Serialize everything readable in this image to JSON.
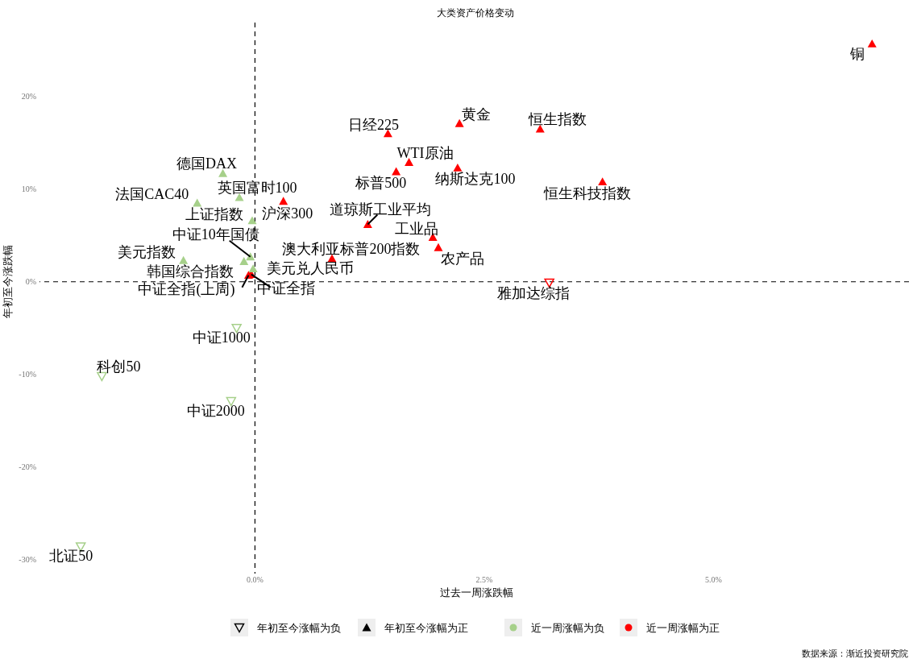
{
  "chart_data": {
    "type": "scatter",
    "title": "大类资产价格变动",
    "xlabel": "过去一周涨跌幅",
    "ylabel": "年初至今涨跌幅",
    "xlim": [
      -2.35,
      7.15
    ],
    "ylim": [
      -31,
      28
    ],
    "xticks": [
      {
        "value": 0,
        "label": "0.0%"
      },
      {
        "value": 2.5,
        "label": "2.5%"
      },
      {
        "value": 5,
        "label": "5.0%"
      }
    ],
    "yticks": [
      {
        "value": -30,
        "label": "-30%"
      },
      {
        "value": -20,
        "label": "-20%"
      },
      {
        "value": -10,
        "label": "-10%"
      },
      {
        "value": 0,
        "label": "0%"
      },
      {
        "value": 10,
        "label": "10%"
      },
      {
        "value": 20,
        "label": "20%"
      }
    ],
    "grid": false,
    "legend": "bottom",
    "marker": "triangle",
    "ref_lines": [
      {
        "axis": "x",
        "value": 0,
        "line_style": "dashed",
        "color": "#000000"
      },
      {
        "axis": "y",
        "value": 0,
        "line_style": "dashed",
        "color": "#000000"
      }
    ],
    "series": [
      {
        "name": "近一周涨幅为正",
        "color": "#ff0000",
        "x": [
          6.73,
          2.23,
          3.11,
          1.45,
          1.68,
          2.21,
          1.54,
          3.79,
          0.31,
          1.23,
          1.94,
          2.0,
          0.84,
          3.21,
          -0.04,
          -0.07
        ],
        "values": [
          25.7,
          17.1,
          16.5,
          16.0,
          12.9,
          12.3,
          11.9,
          10.8,
          8.7,
          6.2,
          4.8,
          3.7,
          2.5,
          -0.1,
          0.8,
          0.7
        ]
      },
      {
        "name": "近一周涨幅为负",
        "color": "#a6d08a",
        "x": [
          -0.02,
          -0.12,
          -0.05,
          -0.78,
          -0.03,
          -0.63,
          -0.17,
          -0.35,
          -0.2,
          -1.67,
          -0.26,
          -1.9
        ],
        "values": [
          1.4,
          2.2,
          2.7,
          2.3,
          6.6,
          8.5,
          9.1,
          11.7,
          -5.0,
          -10.2,
          -12.9,
          -28.6
        ]
      }
    ],
    "annotations": [
      "年初至今涨幅为负",
      "年初至今涨幅为正",
      "数据来源：渐近投资研究院",
      {
        "text": "铜",
        "x": 6.73,
        "y": 25.7
      },
      {
        "text": "黄金",
        "x": 2.23,
        "y": 17.1
      },
      {
        "text": "恒生指数",
        "x": 3.11,
        "y": 16.5
      },
      {
        "text": "日经225",
        "x": 1.45,
        "y": 16.0
      },
      {
        "text": "WTI原油",
        "x": 1.68,
        "y": 12.9
      },
      {
        "text": "纳斯达克100",
        "x": 2.21,
        "y": 12.3
      },
      {
        "text": "标普500",
        "x": 1.54,
        "y": 11.9
      },
      {
        "text": "恒生科技指数",
        "x": 3.79,
        "y": 10.8
      },
      {
        "text": "沪深300",
        "x": 0.31,
        "y": 8.7
      },
      {
        "text": "道琼斯工业平均",
        "x": 1.23,
        "y": 6.2
      },
      {
        "text": "工业品",
        "x": 1.94,
        "y": 4.8
      },
      {
        "text": "农产品",
        "x": 2.0,
        "y": 3.7
      },
      {
        "text": "澳大利亚标普200指数",
        "x": 0.84,
        "y": 2.5
      },
      {
        "text": "雅加达综指",
        "x": 3.21,
        "y": -0.1
      },
      {
        "text": "中证全指",
        "x": -0.04,
        "y": 0.8
      },
      {
        "text": "中证全指(上周)",
        "x": -0.07,
        "y": 0.7
      },
      {
        "text": "美元兑人民币",
        "x": -0.02,
        "y": 1.4
      },
      {
        "text": "韩国综合指数",
        "x": -0.12,
        "y": 2.2
      },
      {
        "text": "中证10年国债",
        "x": -0.05,
        "y": 2.7
      },
      {
        "text": "美元指数",
        "x": -0.78,
        "y": 2.3
      },
      {
        "text": "上证指数",
        "x": -0.03,
        "y": 6.6
      },
      {
        "text": "法国CAC40",
        "x": -0.63,
        "y": 8.5
      },
      {
        "text": "英国富时100",
        "x": -0.17,
        "y": 9.1
      },
      {
        "text": "德国DAX",
        "x": -0.35,
        "y": 11.7
      },
      {
        "text": "中证1000",
        "x": -0.2,
        "y": -5.0
      },
      {
        "text": "科创50",
        "x": -1.67,
        "y": -10.2
      },
      {
        "text": "中证2000",
        "x": -0.26,
        "y": -12.9
      },
      {
        "text": "北证50",
        "x": -1.9,
        "y": -28.6
      }
    ]
  }
}
